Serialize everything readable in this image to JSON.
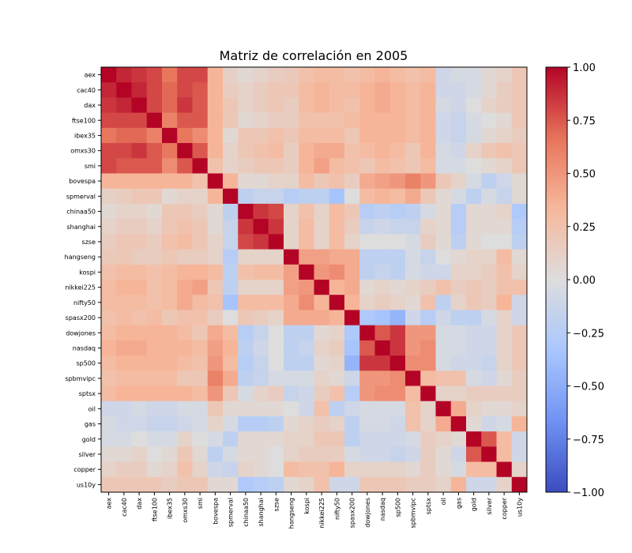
{
  "chart_data": {
    "type": "heatmap",
    "title": "Matriz de correlación en 2005",
    "labels": [
      "aex",
      "cac40",
      "dax",
      "ftse100",
      "ibex35",
      "omxs30",
      "smi",
      "bovespa",
      "spmerval",
      "chinaa50",
      "shanghai",
      "szse",
      "hangseng",
      "kospi",
      "nikkei225",
      "nifty50",
      "spasx200",
      "dowjones",
      "nasdaq",
      "sp500",
      "spbmvipc",
      "sptsx",
      "oil",
      "gas",
      "gold",
      "silver",
      "copper",
      "us10y"
    ],
    "values": [
      [
        1.0,
        0.9,
        0.85,
        0.8,
        0.65,
        0.8,
        0.8,
        0.35,
        0.12,
        0.05,
        0.1,
        0.15,
        0.18,
        0.25,
        0.3,
        0.3,
        0.25,
        0.3,
        0.35,
        0.3,
        0.25,
        0.3,
        -0.1,
        -0.05,
        -0.05,
        0.05,
        0.1,
        0.2
      ],
      [
        0.9,
        1.0,
        0.9,
        0.8,
        0.7,
        0.8,
        0.75,
        0.35,
        0.15,
        0.1,
        0.15,
        0.2,
        0.2,
        0.3,
        0.35,
        0.3,
        0.3,
        0.35,
        0.4,
        0.35,
        0.3,
        0.35,
        -0.1,
        -0.1,
        -0.05,
        0.05,
        0.15,
        0.2
      ],
      [
        0.85,
        0.9,
        1.0,
        0.8,
        0.7,
        0.85,
        0.75,
        0.35,
        0.2,
        0.1,
        0.15,
        0.2,
        0.15,
        0.3,
        0.35,
        0.3,
        0.25,
        0.35,
        0.4,
        0.35,
        0.3,
        0.35,
        -0.05,
        -0.1,
        0.0,
        0.1,
        0.15,
        0.2
      ],
      [
        0.8,
        0.8,
        0.8,
        1.0,
        0.6,
        0.75,
        0.75,
        0.35,
        0.2,
        0.05,
        0.1,
        0.15,
        0.15,
        0.25,
        0.25,
        0.25,
        0.3,
        0.35,
        0.35,
        0.35,
        0.3,
        0.35,
        -0.1,
        -0.15,
        -0.05,
        0.0,
        0.05,
        0.2
      ],
      [
        0.65,
        0.7,
        0.7,
        0.6,
        1.0,
        0.65,
        0.55,
        0.35,
        0.05,
        0.2,
        0.2,
        0.25,
        0.2,
        0.3,
        0.3,
        0.3,
        0.2,
        0.35,
        0.35,
        0.35,
        0.3,
        0.35,
        -0.1,
        -0.15,
        -0.05,
        0.05,
        0.1,
        0.15
      ],
      [
        0.8,
        0.8,
        0.85,
        0.75,
        0.65,
        1.0,
        0.75,
        0.35,
        0.1,
        0.2,
        0.25,
        0.3,
        0.15,
        0.35,
        0.4,
        0.4,
        0.25,
        0.3,
        0.35,
        0.3,
        0.2,
        0.35,
        -0.05,
        -0.1,
        0.1,
        0.2,
        0.25,
        0.2
      ],
      [
        0.8,
        0.75,
        0.75,
        0.75,
        0.55,
        0.75,
        1.0,
        0.25,
        0.1,
        0.15,
        0.2,
        0.2,
        0.15,
        0.35,
        0.45,
        0.3,
        0.25,
        0.2,
        0.3,
        0.25,
        0.2,
        0.3,
        -0.05,
        -0.05,
        0.0,
        0.05,
        0.1,
        0.2
      ],
      [
        0.35,
        0.35,
        0.35,
        0.35,
        0.35,
        0.35,
        0.25,
        1.0,
        0.35,
        0.05,
        0.05,
        0.1,
        0.1,
        0.3,
        0.2,
        0.25,
        0.15,
        0.4,
        0.45,
        0.5,
        0.6,
        0.5,
        0.2,
        0.1,
        -0.05,
        -0.2,
        -0.1,
        0.05
      ],
      [
        0.12,
        0.15,
        0.2,
        0.2,
        0.05,
        0.1,
        0.1,
        0.35,
        1.0,
        -0.2,
        -0.15,
        -0.15,
        -0.25,
        -0.2,
        -0.2,
        -0.35,
        0.0,
        0.3,
        0.35,
        0.3,
        0.4,
        0.2,
        0.05,
        -0.05,
        -0.2,
        -0.05,
        -0.15,
        0.05
      ],
      [
        0.05,
        0.1,
        0.1,
        0.05,
        0.2,
        0.2,
        0.15,
        0.05,
        -0.2,
        1.0,
        0.85,
        0.8,
        0.1,
        0.25,
        0.1,
        0.3,
        0.2,
        -0.25,
        -0.2,
        -0.25,
        -0.2,
        -0.05,
        0.05,
        -0.25,
        0.05,
        0.05,
        0.1,
        -0.3
      ],
      [
        0.1,
        0.15,
        0.15,
        0.1,
        0.2,
        0.25,
        0.2,
        0.05,
        -0.15,
        0.85,
        1.0,
        0.85,
        0.1,
        0.3,
        0.1,
        0.3,
        0.15,
        -0.15,
        -0.1,
        -0.15,
        -0.15,
        0.1,
        0.05,
        -0.25,
        0.05,
        0.05,
        0.05,
        -0.25
      ],
      [
        0.15,
        0.2,
        0.2,
        0.15,
        0.25,
        0.3,
        0.2,
        0.1,
        -0.15,
        0.8,
        0.85,
        1.0,
        0.1,
        0.3,
        0.1,
        0.3,
        0.1,
        0.0,
        0.0,
        0.0,
        -0.05,
        0.15,
        0.05,
        -0.2,
        0.05,
        0.0,
        0.0,
        -0.2
      ],
      [
        0.18,
        0.2,
        0.15,
        0.15,
        0.2,
        0.15,
        0.15,
        0.1,
        -0.25,
        0.1,
        0.1,
        0.1,
        1.0,
        0.45,
        0.45,
        0.4,
        0.4,
        -0.2,
        -0.2,
        -0.2,
        -0.05,
        -0.15,
        0.0,
        0.05,
        0.1,
        0.1,
        0.3,
        0.05
      ],
      [
        0.25,
        0.3,
        0.3,
        0.25,
        0.3,
        0.35,
        0.35,
        0.3,
        -0.2,
        0.25,
        0.3,
        0.3,
        0.45,
        1.0,
        0.5,
        0.55,
        0.4,
        -0.2,
        -0.15,
        -0.2,
        -0.05,
        -0.1,
        -0.1,
        0.1,
        0.1,
        0.15,
        0.25,
        0.1
      ],
      [
        0.3,
        0.35,
        0.35,
        0.25,
        0.3,
        0.4,
        0.45,
        0.2,
        -0.2,
        0.1,
        0.1,
        0.1,
        0.45,
        0.5,
        1.0,
        0.35,
        0.4,
        0.05,
        0.1,
        0.05,
        0.1,
        0.15,
        0.25,
        0.15,
        0.2,
        0.15,
        0.25,
        0.25
      ],
      [
        0.3,
        0.3,
        0.3,
        0.25,
        0.3,
        0.4,
        0.3,
        0.25,
        -0.35,
        0.3,
        0.3,
        0.3,
        0.4,
        0.55,
        0.35,
        1.0,
        0.35,
        0.1,
        0.15,
        0.1,
        0.05,
        0.25,
        -0.2,
        0.1,
        0.2,
        0.15,
        0.35,
        -0.1
      ],
      [
        0.25,
        0.3,
        0.25,
        0.3,
        0.2,
        0.25,
        0.25,
        0.15,
        0.0,
        0.2,
        0.15,
        0.1,
        0.4,
        0.4,
        0.4,
        0.35,
        1.0,
        -0.3,
        -0.35,
        -0.45,
        -0.1,
        -0.25,
        -0.1,
        -0.2,
        -0.2,
        -0.05,
        0.1,
        -0.1
      ],
      [
        0.3,
        0.35,
        0.35,
        0.35,
        0.35,
        0.3,
        0.2,
        0.4,
        0.3,
        -0.25,
        -0.15,
        0.0,
        -0.2,
        -0.2,
        0.05,
        0.1,
        -0.3,
        1.0,
        0.75,
        0.85,
        0.5,
        0.5,
        -0.05,
        -0.05,
        -0.1,
        -0.1,
        0.1,
        0.2
      ],
      [
        0.35,
        0.4,
        0.4,
        0.35,
        0.35,
        0.35,
        0.3,
        0.45,
        0.35,
        -0.2,
        -0.1,
        0.0,
        -0.2,
        -0.15,
        0.1,
        0.15,
        -0.35,
        0.75,
        1.0,
        0.85,
        0.5,
        0.55,
        -0.05,
        -0.05,
        -0.1,
        -0.1,
        0.1,
        0.2
      ],
      [
        0.3,
        0.35,
        0.35,
        0.35,
        0.35,
        0.3,
        0.25,
        0.5,
        0.3,
        -0.25,
        -0.15,
        0.0,
        -0.2,
        -0.2,
        0.05,
        0.1,
        -0.45,
        0.85,
        0.85,
        1.0,
        0.55,
        0.55,
        -0.05,
        -0.1,
        -0.1,
        -0.15,
        0.1,
        0.2
      ],
      [
        0.25,
        0.3,
        0.3,
        0.3,
        0.3,
        0.2,
        0.2,
        0.6,
        0.4,
        -0.2,
        -0.15,
        -0.05,
        -0.05,
        -0.05,
        0.1,
        0.05,
        -0.1,
        0.5,
        0.5,
        0.55,
        1.0,
        0.3,
        0.25,
        0.25,
        -0.05,
        -0.1,
        0.05,
        0.15
      ],
      [
        0.3,
        0.35,
        0.35,
        0.35,
        0.35,
        0.35,
        0.3,
        0.5,
        0.2,
        -0.05,
        0.1,
        0.15,
        -0.15,
        -0.1,
        0.15,
        0.25,
        -0.25,
        0.5,
        0.55,
        0.55,
        0.3,
        1.0,
        0.1,
        0.1,
        0.15,
        0.15,
        0.15,
        0.15
      ],
      [
        -0.1,
        -0.1,
        -0.05,
        -0.1,
        -0.1,
        -0.05,
        -0.05,
        0.2,
        0.05,
        0.05,
        0.05,
        0.05,
        0.0,
        -0.1,
        0.25,
        -0.2,
        -0.1,
        -0.05,
        -0.05,
        -0.05,
        0.25,
        0.1,
        1.0,
        0.4,
        0.1,
        0.05,
        0.05,
        0.1
      ],
      [
        -0.05,
        -0.1,
        -0.1,
        -0.15,
        -0.15,
        -0.1,
        -0.05,
        0.1,
        -0.05,
        -0.25,
        -0.25,
        -0.2,
        0.05,
        0.1,
        0.15,
        0.1,
        -0.2,
        -0.05,
        -0.05,
        -0.1,
        0.25,
        0.1,
        0.4,
        1.0,
        0.05,
        -0.1,
        -0.05,
        0.35
      ],
      [
        -0.05,
        -0.05,
        0.0,
        -0.05,
        -0.05,
        0.1,
        0.0,
        -0.05,
        -0.2,
        0.05,
        0.05,
        0.05,
        0.1,
        0.1,
        0.2,
        0.2,
        -0.2,
        -0.1,
        -0.1,
        -0.1,
        -0.05,
        0.15,
        0.1,
        0.05,
        1.0,
        0.75,
        0.3,
        -0.1
      ],
      [
        0.05,
        0.05,
        0.1,
        0.0,
        0.05,
        0.2,
        0.05,
        -0.2,
        -0.05,
        0.05,
        0.05,
        0.0,
        0.1,
        0.15,
        0.15,
        0.15,
        -0.05,
        -0.1,
        -0.1,
        -0.15,
        -0.1,
        0.15,
        0.05,
        -0.1,
        0.75,
        1.0,
        0.3,
        -0.1
      ],
      [
        0.1,
        0.15,
        0.15,
        0.05,
        0.1,
        0.25,
        0.1,
        -0.1,
        -0.15,
        0.1,
        0.05,
        0.0,
        0.3,
        0.25,
        0.25,
        0.35,
        0.1,
        0.1,
        0.1,
        0.1,
        0.05,
        0.15,
        0.05,
        -0.05,
        0.3,
        0.3,
        1.0,
        0.1
      ],
      [
        0.2,
        0.2,
        0.2,
        0.2,
        0.15,
        0.2,
        0.2,
        0.05,
        0.05,
        -0.3,
        -0.25,
        -0.2,
        0.05,
        0.1,
        0.25,
        -0.1,
        -0.1,
        0.2,
        0.2,
        0.2,
        0.15,
        0.15,
        0.1,
        0.35,
        -0.1,
        -0.1,
        0.1,
        1.0
      ]
    ],
    "colorbar": {
      "min": -1.0,
      "max": 1.0,
      "ticks": [
        "1.00",
        "0.75",
        "0.50",
        "0.25",
        "0.00",
        "−0.25",
        "−0.50",
        "−0.75",
        "−1.00"
      ],
      "tick_values": [
        1.0,
        0.75,
        0.5,
        0.25,
        0.0,
        -0.25,
        -0.5,
        -0.75,
        -1.0
      ]
    },
    "colormap": "coolwarm",
    "colormap_stops": [
      "#3b4cc0",
      "#6f92f3",
      "#aac7fd",
      "#dddddd",
      "#f7b89c",
      "#e7745b",
      "#b40426"
    ]
  }
}
